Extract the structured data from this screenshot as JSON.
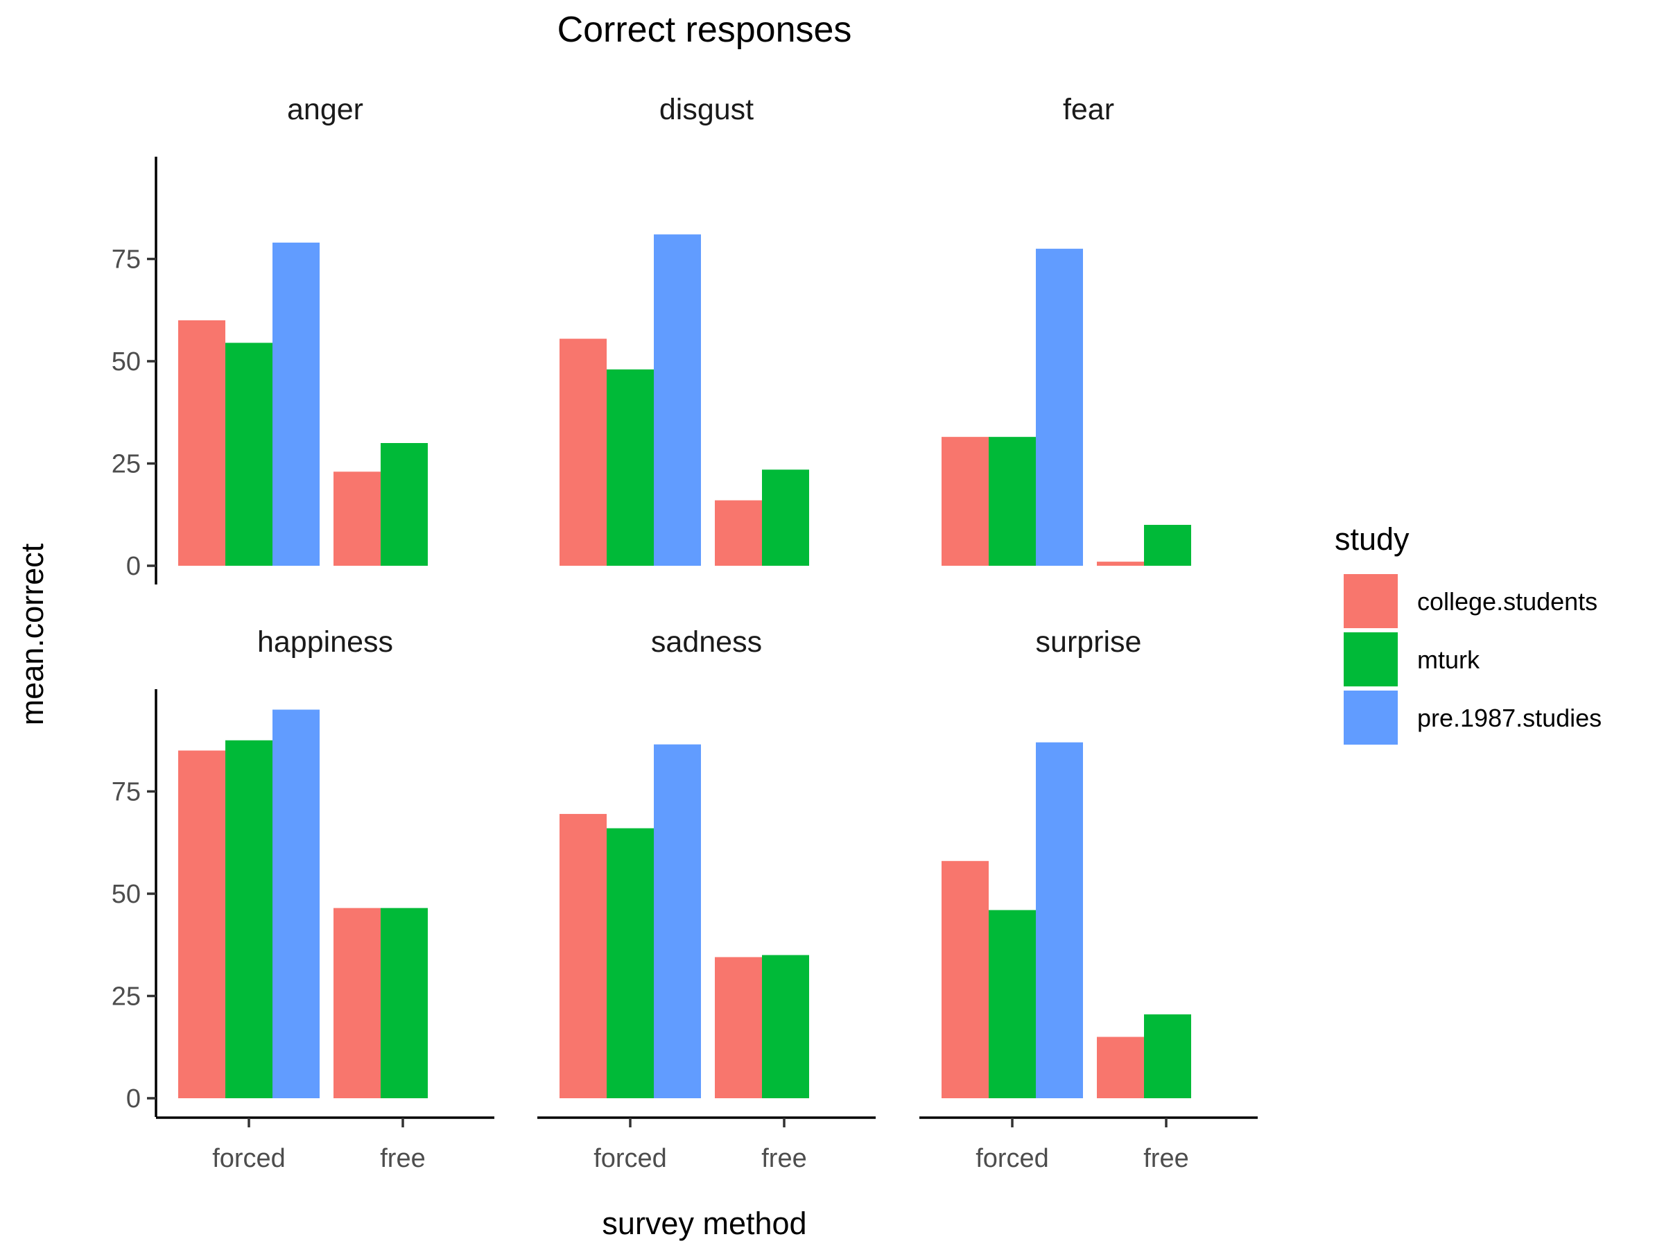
{
  "chart_data": {
    "type": "bar",
    "title": "Correct responses",
    "xlabel": "survey method",
    "ylabel": "mean.correct",
    "categories": [
      "forced",
      "free"
    ],
    "ylim": [
      0,
      100
    ],
    "yticks": [
      0,
      25,
      50,
      75
    ],
    "grid": false,
    "legend": {
      "title": "study",
      "position": "right",
      "entries": [
        {
          "name": "college.students",
          "color": "#F8766D"
        },
        {
          "name": "mturk",
          "color": "#00BA38"
        },
        {
          "name": "pre.1987.studies",
          "color": "#619CFF"
        }
      ]
    },
    "panels": [
      {
        "label": "anger",
        "series": [
          {
            "name": "college.students",
            "values": [
              60,
              23
            ]
          },
          {
            "name": "mturk",
            "values": [
              54.5,
              30
            ]
          },
          {
            "name": "pre.1987.studies",
            "values": [
              79,
              null
            ]
          }
        ]
      },
      {
        "label": "disgust",
        "series": [
          {
            "name": "college.students",
            "values": [
              55.5,
              16
            ]
          },
          {
            "name": "mturk",
            "values": [
              48,
              23.5
            ]
          },
          {
            "name": "pre.1987.studies",
            "values": [
              81,
              null
            ]
          }
        ]
      },
      {
        "label": "fear",
        "series": [
          {
            "name": "college.students",
            "values": [
              31.5,
              1
            ]
          },
          {
            "name": "mturk",
            "values": [
              31.5,
              10
            ]
          },
          {
            "name": "pre.1987.studies",
            "values": [
              77.5,
              null
            ]
          }
        ]
      },
      {
        "label": "happiness",
        "series": [
          {
            "name": "college.students",
            "values": [
              85,
              46.5
            ]
          },
          {
            "name": "mturk",
            "values": [
              87.5,
              46.5
            ]
          },
          {
            "name": "pre.1987.studies",
            "values": [
              95,
              null
            ]
          }
        ]
      },
      {
        "label": "sadness",
        "series": [
          {
            "name": "college.students",
            "values": [
              69.5,
              34.5
            ]
          },
          {
            "name": "mturk",
            "values": [
              66,
              35
            ]
          },
          {
            "name": "pre.1987.studies",
            "values": [
              86.5,
              null
            ]
          }
        ]
      },
      {
        "label": "surprise",
        "series": [
          {
            "name": "college.students",
            "values": [
              58,
              15
            ]
          },
          {
            "name": "mturk",
            "values": [
              46,
              20.5
            ]
          },
          {
            "name": "pre.1987.studies",
            "values": [
              87,
              null
            ]
          }
        ]
      }
    ]
  }
}
